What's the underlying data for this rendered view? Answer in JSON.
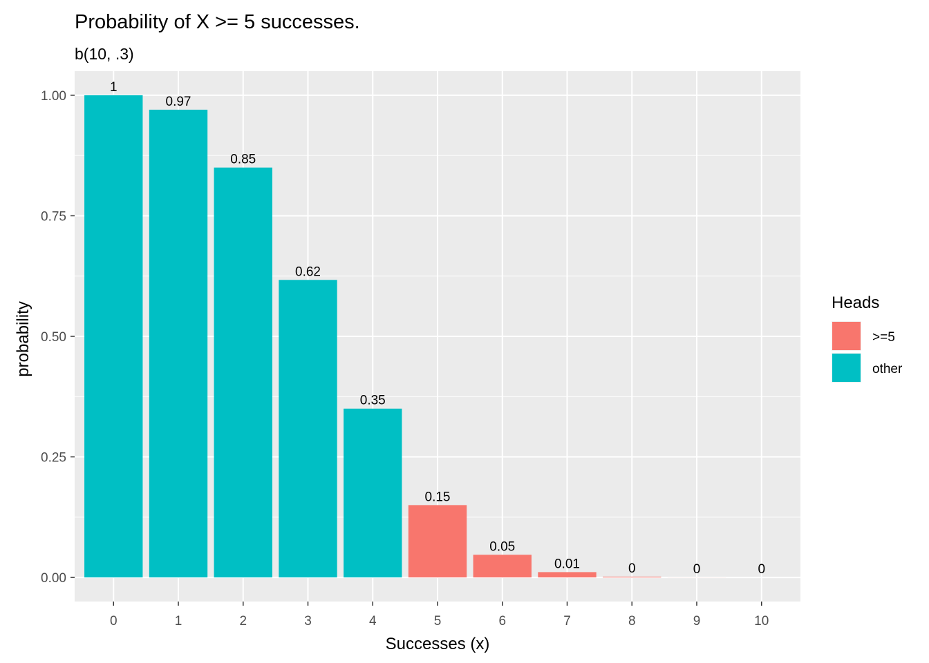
{
  "chart_data": {
    "type": "bar",
    "title": "Probability of X >= 5 successes.",
    "subtitle": "b(10, .3)",
    "xlabel": "Successes (x)",
    "ylabel": "probability",
    "categories": [
      "0",
      "1",
      "2",
      "3",
      "4",
      "5",
      "6",
      "7",
      "8",
      "9",
      "10"
    ],
    "values": [
      1.0,
      0.97,
      0.85,
      0.617,
      0.35,
      0.15,
      0.047,
      0.011,
      0.0016,
      0.0001,
      0.0
    ],
    "value_labels": [
      "1",
      "0.97",
      "0.85",
      "0.62",
      "0.35",
      "0.15",
      "0.05",
      "0.01",
      "0",
      "0",
      "0"
    ],
    "groups": [
      "other",
      "other",
      "other",
      "other",
      "other",
      ">=5",
      ">=5",
      ">=5",
      ">=5",
      ">=5",
      ">=5"
    ],
    "ylim": [
      -0.05,
      1.05
    ],
    "yticks": [
      0.0,
      0.25,
      0.5,
      0.75,
      1.0
    ],
    "ytick_labels": [
      "0.00",
      "0.25",
      "0.50",
      "0.75",
      "1.00"
    ],
    "grid": true,
    "legend": {
      "title": "Heads",
      "placement": "right",
      "entries": [
        {
          "label": ">=5",
          "color": "#F8766D"
        },
        {
          "label": "other",
          "color": "#00BFC4"
        }
      ]
    },
    "colors": {
      ">=5": "#F8766D",
      "other": "#00BFC4",
      "panel_background": "#EBEBEB",
      "grid": "#FFFFFF"
    }
  }
}
